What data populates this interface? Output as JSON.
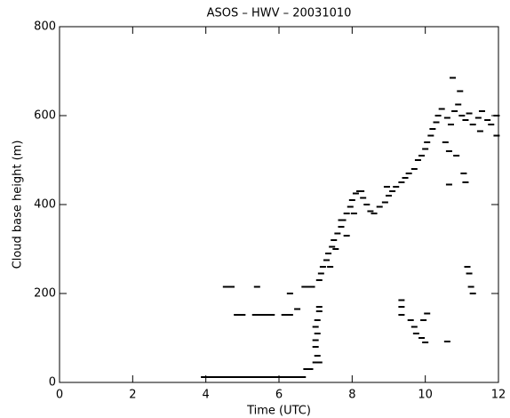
{
  "chart_data": {
    "type": "scatter",
    "title": "ASOS – HWV – 20031010",
    "xlabel": "Time (UTC)",
    "ylabel": "Cloud base height (m)",
    "color": "#000000",
    "xlim": [
      0,
      12
    ],
    "xticks": [
      0,
      2,
      4,
      6,
      8,
      10,
      12
    ],
    "ylim": [
      0,
      800
    ],
    "yticks": [
      0,
      200,
      400,
      600,
      800
    ],
    "x": [
      3.95,
      4.05,
      4.15,
      4.25,
      4.35,
      4.45,
      4.55,
      4.65,
      4.75,
      4.85,
      4.95,
      5.05,
      5.15,
      5.25,
      5.35,
      5.45,
      5.55,
      5.65,
      5.75,
      5.85,
      5.95,
      6.05,
      6.15,
      6.25,
      6.35,
      6.45,
      6.55,
      6.65,
      6.75,
      6.85,
      4.55,
      4.7,
      5.4,
      6.3,
      4.85,
      5.0,
      5.35,
      5.5,
      5.65,
      5.8,
      6.15,
      6.3,
      6.5,
      6.7,
      6.8,
      6.9,
      7.0,
      7.05,
      7.0,
      7.0,
      7.05,
      7.0,
      7.05,
      7.1,
      7.1,
      7.1,
      7.1,
      7.15,
      7.2,
      7.3,
      7.35,
      7.45,
      7.5,
      7.6,
      7.7,
      7.75,
      7.85,
      7.95,
      8.0,
      8.1,
      8.25,
      8.3,
      8.4,
      8.5,
      8.6,
      8.75,
      8.9,
      9.0,
      9.1,
      9.2,
      9.35,
      9.45,
      9.55,
      9.7,
      9.8,
      9.9,
      10.0,
      10.05,
      10.15,
      10.2,
      10.3,
      10.35,
      10.45,
      10.6,
      10.7,
      10.8,
      10.9,
      11.0,
      11.1,
      11.2,
      11.3,
      11.45,
      11.55,
      11.7,
      11.8,
      11.95,
      11.95,
      11.5,
      10.75,
      10.95,
      10.55,
      10.65,
      10.85,
      11.05,
      11.1,
      10.65,
      8.95,
      8.2,
      8.05,
      7.7,
      7.85,
      7.55,
      7.4,
      9.35,
      9.35,
      9.35,
      9.6,
      9.7,
      9.75,
      9.9,
      9.95,
      10.05,
      10.0,
      10.6,
      11.15,
      11.2,
      11.25,
      11.3
    ],
    "values": [
      12,
      12,
      12,
      12,
      12,
      12,
      12,
      12,
      12,
      12,
      12,
      12,
      12,
      12,
      12,
      12,
      12,
      12,
      12,
      12,
      12,
      12,
      12,
      12,
      12,
      12,
      12,
      12,
      30,
      30,
      215,
      215,
      215,
      200,
      152,
      152,
      152,
      152,
      152,
      152,
      152,
      152,
      165,
      215,
      215,
      215,
      45,
      60,
      80,
      95,
      110,
      125,
      140,
      160,
      170,
      45,
      230,
      245,
      260,
      275,
      290,
      305,
      320,
      335,
      350,
      365,
      380,
      395,
      410,
      425,
      430,
      415,
      400,
      385,
      380,
      395,
      405,
      420,
      430,
      440,
      450,
      460,
      470,
      480,
      500,
      510,
      525,
      540,
      555,
      570,
      585,
      600,
      615,
      595,
      580,
      610,
      625,
      600,
      590,
      605,
      580,
      595,
      610,
      590,
      580,
      600,
      555,
      565,
      685,
      655,
      540,
      520,
      510,
      470,
      450,
      445,
      440,
      430,
      380,
      365,
      330,
      300,
      260,
      185,
      170,
      152,
      140,
      125,
      110,
      100,
      140,
      155,
      90,
      92,
      260,
      245,
      215,
      200
    ]
  }
}
